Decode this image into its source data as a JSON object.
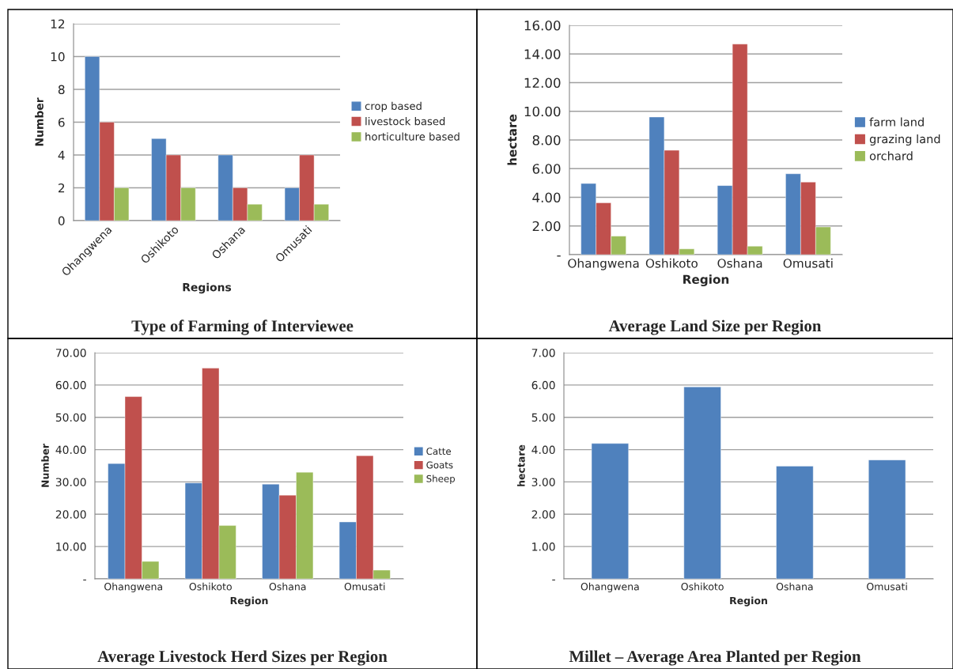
{
  "chart_data": [
    {
      "type": "bar",
      "title": "Type of Farming of Interviewee",
      "xlabel": "Regions",
      "ylabel": "Number",
      "categories": [
        "Ohangwena",
        "Oshikoto",
        "Oshana",
        "Omusati"
      ],
      "series": [
        {
          "name": "crop based",
          "color": "#4f81bd",
          "values": [
            10,
            5,
            4,
            2
          ]
        },
        {
          "name": "livestock based",
          "color": "#c0504d",
          "values": [
            6,
            4,
            2,
            4
          ]
        },
        {
          "name": "horticulture based",
          "color": "#9bbb59",
          "values": [
            2,
            2,
            1,
            1
          ]
        }
      ],
      "ylim": [
        0,
        12
      ],
      "yticks": [
        0,
        2,
        4,
        6,
        8,
        10,
        12
      ],
      "grid": "y",
      "legend": "right"
    },
    {
      "type": "bar",
      "title": "Average Land Size per Region",
      "xlabel": "Region",
      "ylabel": "hectare",
      "categories": [
        "Ohangwena",
        "Oshikoto",
        "Oshana",
        "Omusati"
      ],
      "series": [
        {
          "name": "farm land",
          "color": "#4f81bd",
          "values": [
            4.96,
            9.6,
            4.82,
            5.64
          ]
        },
        {
          "name": "grazing land",
          "color": "#c0504d",
          "values": [
            3.62,
            7.28,
            14.69,
            5.06
          ]
        },
        {
          "name": "orchard",
          "color": "#9bbb59",
          "values": [
            1.29,
            0.4,
            0.59,
            1.93
          ]
        }
      ],
      "ylim": [
        0,
        16
      ],
      "yticks": [
        {
          "value": 0,
          "label": "-"
        },
        {
          "value": 2,
          "label": "2.00"
        },
        {
          "value": 4,
          "label": "4.00"
        },
        {
          "value": 6,
          "label": "6.00"
        },
        {
          "value": 8,
          "label": "8.00"
        },
        {
          "value": 10,
          "label": "10.00"
        },
        {
          "value": 12,
          "label": "12.00"
        },
        {
          "value": 14,
          "label": "14.00"
        },
        {
          "value": 16,
          "label": "16.00"
        }
      ],
      "grid": "y",
      "legend": "right"
    },
    {
      "type": "bar",
      "title": "Average Livestock Herd Sizes per Region",
      "xlabel": "Region",
      "ylabel": "Number",
      "categories": [
        "Ohangwena",
        "Oshikoto",
        "Oshana",
        "Omusati"
      ],
      "series": [
        {
          "name": "Catte",
          "color": "#4f81bd",
          "values": [
            35.7,
            29.7,
            29.3,
            17.6
          ]
        },
        {
          "name": "Goats",
          "color": "#c0504d",
          "values": [
            56.4,
            65.2,
            25.9,
            38.1
          ]
        },
        {
          "name": "Sheep",
          "color": "#9bbb59",
          "values": [
            5.4,
            16.5,
            33.0,
            2.7
          ]
        }
      ],
      "ylim": [
        0,
        70
      ],
      "yticks": [
        {
          "value": 0,
          "label": "-"
        },
        {
          "value": 10,
          "label": "10.00"
        },
        {
          "value": 20,
          "label": "20.00"
        },
        {
          "value": 30,
          "label": "30.00"
        },
        {
          "value": 40,
          "label": "40.00"
        },
        {
          "value": 50,
          "label": "50.00"
        },
        {
          "value": 60,
          "label": "60.00"
        },
        {
          "value": 70,
          "label": "70.00"
        }
      ],
      "grid": "y",
      "legend": "right"
    },
    {
      "type": "bar",
      "title": "Millet – Average Area Planted per Region",
      "xlabel": "Region",
      "ylabel": "hectare",
      "categories": [
        "Ohangwena",
        "Oshikoto",
        "Oshana",
        "Omusati"
      ],
      "series": [
        {
          "color": "#4f81bd",
          "values": [
            4.19,
            5.94,
            3.49,
            3.68
          ]
        }
      ],
      "ylim": [
        0,
        7
      ],
      "yticks": [
        {
          "value": 0,
          "label": "-"
        },
        {
          "value": 1,
          "label": "1.00"
        },
        {
          "value": 2,
          "label": "2.00"
        },
        {
          "value": 3,
          "label": "3.00"
        },
        {
          "value": 4,
          "label": "4.00"
        },
        {
          "value": 5,
          "label": "5.00"
        },
        {
          "value": 6,
          "label": "6.00"
        },
        {
          "value": 7,
          "label": "7.00"
        }
      ],
      "grid": "y"
    }
  ]
}
